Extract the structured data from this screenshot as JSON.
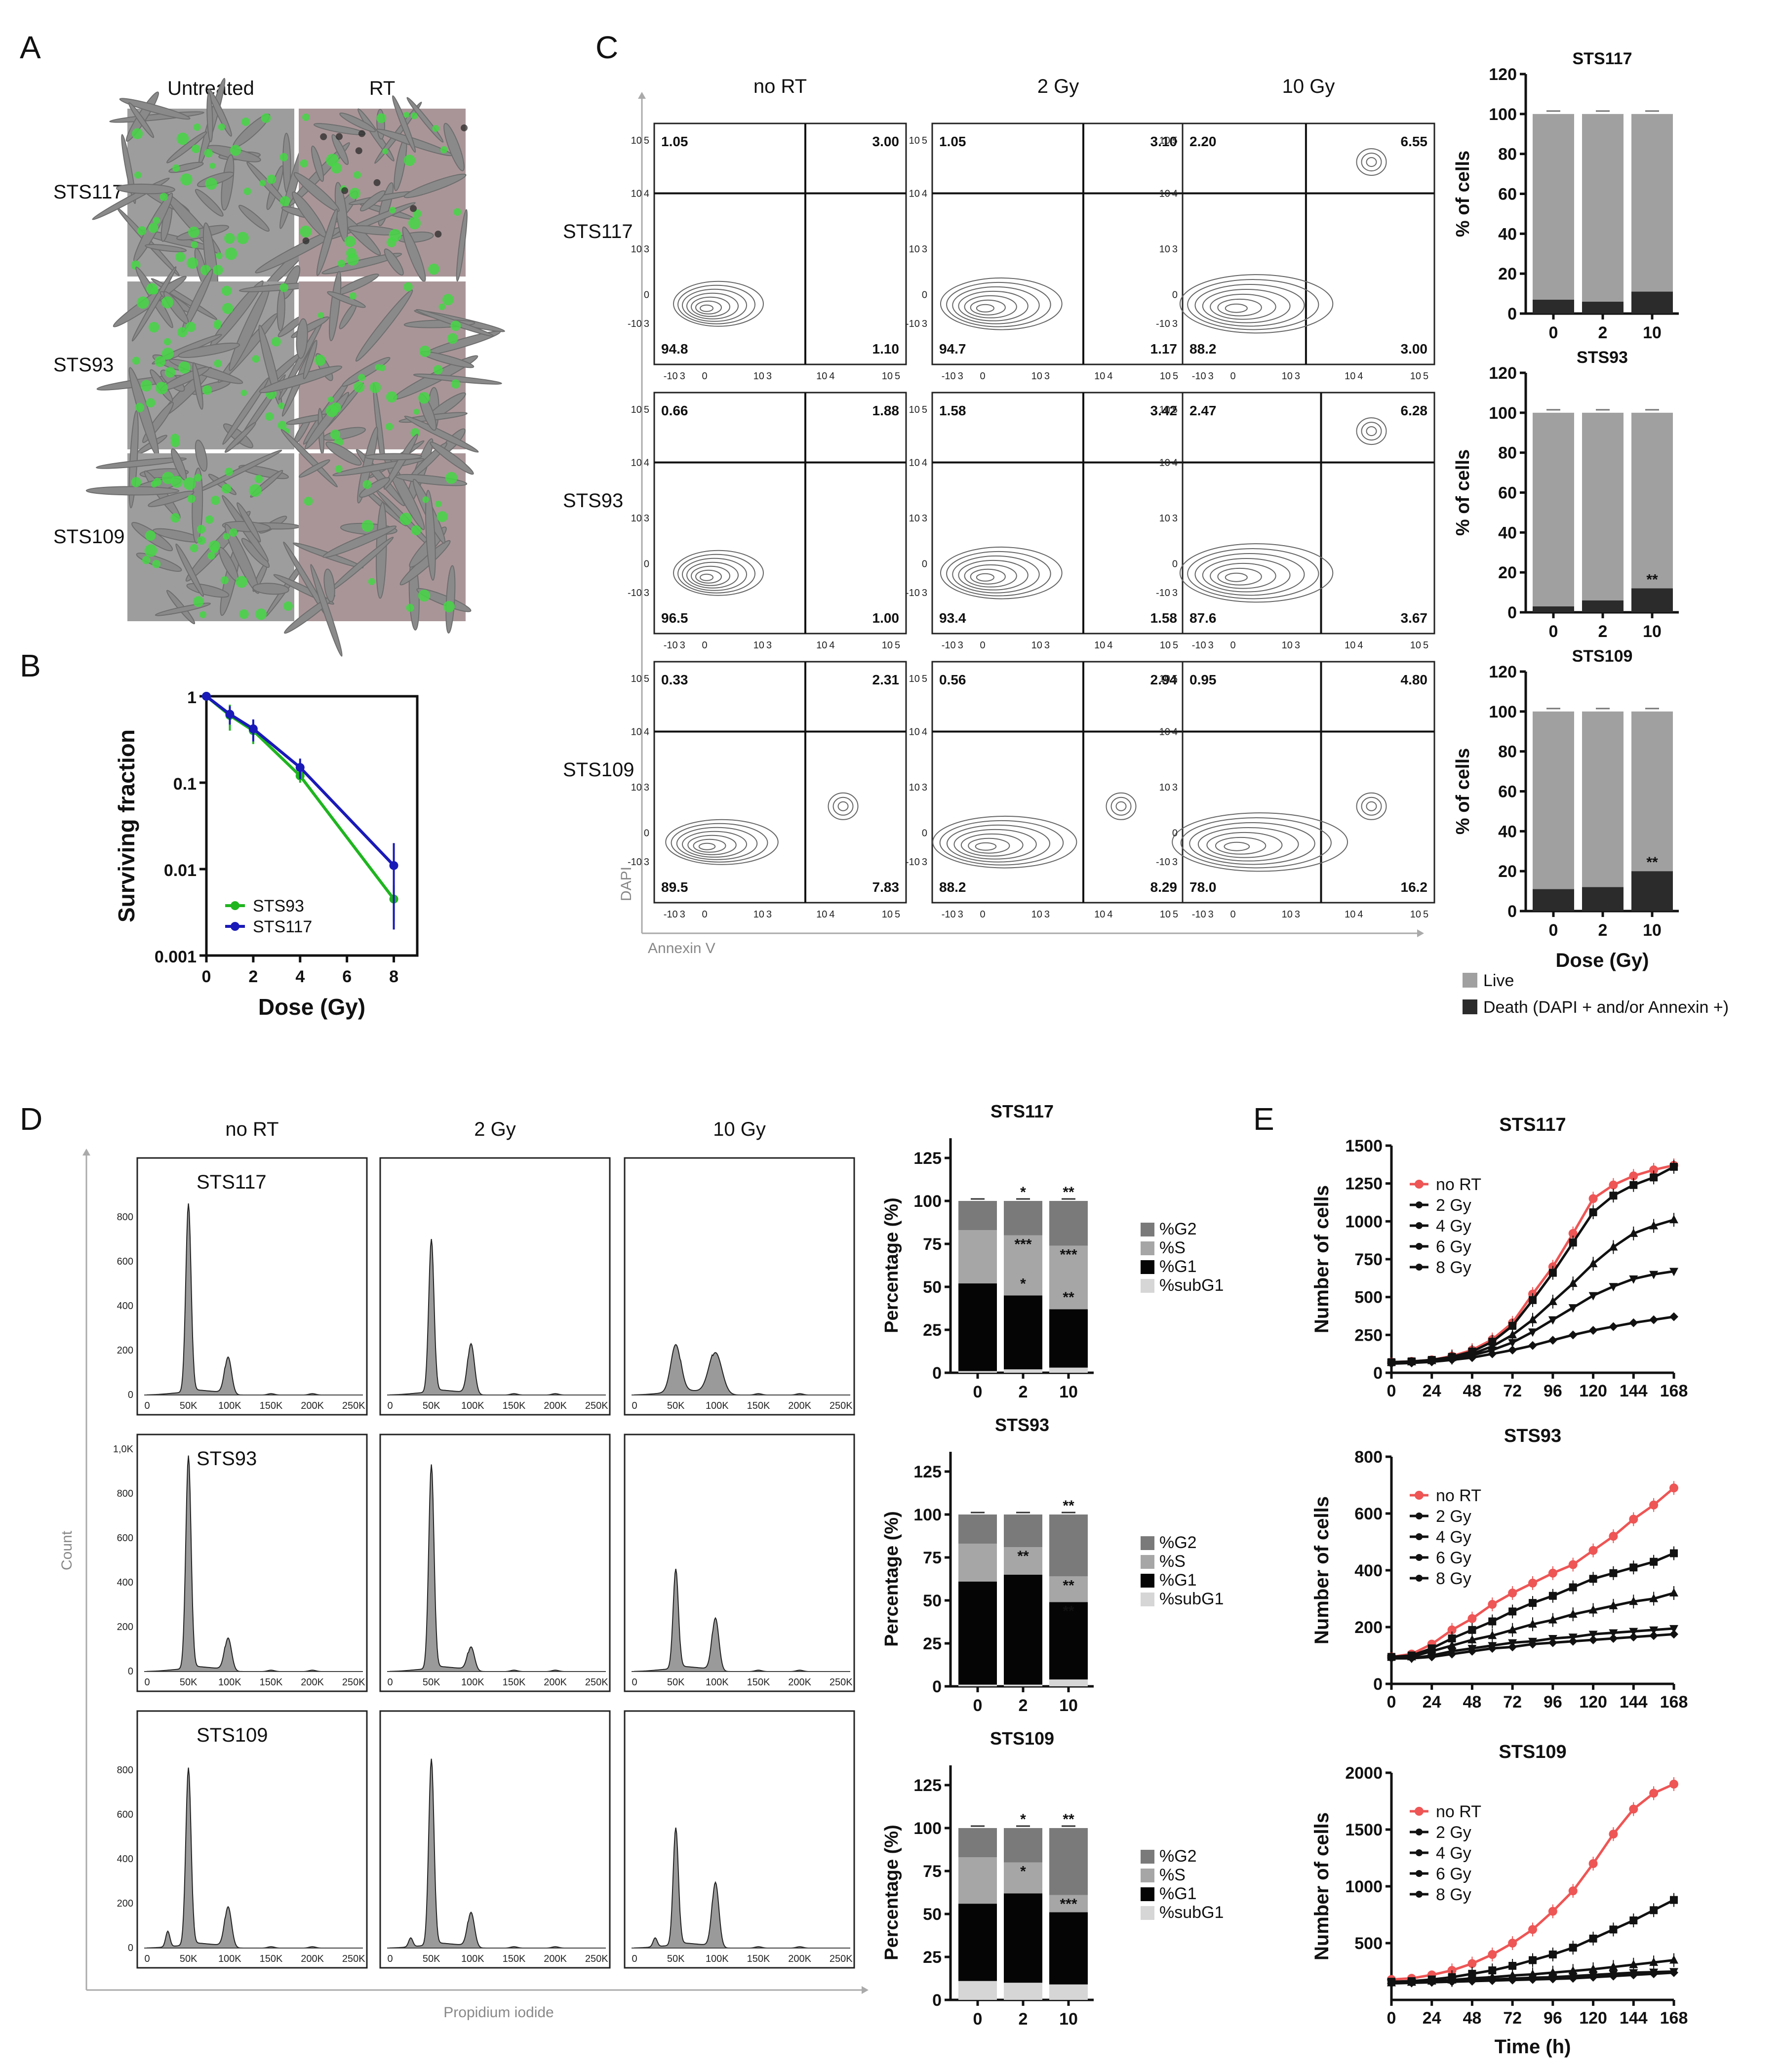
{
  "panels": {
    "A": "A",
    "B": "B",
    "C": "C",
    "D": "D",
    "E": "E"
  },
  "colors": {
    "green": "#1fb51f",
    "blue": "#1a1ab8",
    "red": "#ee5555",
    "live": "#a0a0a0",
    "death": "#2b2b2b",
    "g2": "#7a7a7a",
    "s": "#a6a6a6",
    "g1": "#050505",
    "subg1": "#d6d6d6",
    "cellbg": "#9a9a9a",
    "cellgreen": "#45d645"
  },
  "panel_a": {
    "col_headers": [
      "Untreated",
      "RT"
    ],
    "row_labels": [
      "STS117",
      "STS93",
      "STS109"
    ]
  },
  "chart_data": [
    {
      "id": "B",
      "type": "line",
      "title": "",
      "xlabel": "Dose (Gy)",
      "ylabel": "Surviving fraction",
      "yscale": "log",
      "xlim": [
        0,
        9
      ],
      "ylim": [
        0.001,
        1
      ],
      "xticks": [
        "0",
        "2",
        "4",
        "6",
        "8"
      ],
      "yticks": [
        "0.001",
        "0.01",
        "0.1",
        "1"
      ],
      "x": [
        0,
        1,
        2,
        4,
        8
      ],
      "series": [
        {
          "name": "STS93",
          "color": "#1fb51f",
          "values": [
            1,
            0.6,
            0.4,
            0.12,
            0.0045
          ],
          "err": [
            0,
            0.2,
            0.12,
            0.02,
            0.002
          ]
        },
        {
          "name": "STS117",
          "color": "#1a1ab8",
          "values": [
            1,
            0.62,
            0.42,
            0.15,
            0.011
          ],
          "err": [
            0,
            0.15,
            0.12,
            0.04,
            0.009
          ]
        }
      ]
    },
    {
      "id": "C_flow",
      "type": "scatter",
      "xlabel": "Annexin V",
      "ylabel": "DAPI",
      "col_headers": [
        "no RT",
        "2 Gy",
        "10 Gy"
      ],
      "row_labels": [
        "STS117",
        "STS93",
        "STS109"
      ],
      "y_tick_labels": [
        "10^5",
        "10^4",
        "10^3",
        "0",
        "-10^3"
      ],
      "x_tick_labels": [
        "-10^3",
        "0",
        "10^3",
        "10^4",
        "10^5"
      ],
      "quadrants": [
        [
          [
            "1.05",
            "3.00",
            "94.8",
            "1.10"
          ],
          [
            "1.05",
            "3.10",
            "94.7",
            "1.17"
          ],
          [
            "2.20",
            "6.55",
            "88.2",
            "3.00"
          ]
        ],
        [
          [
            "0.66",
            "1.88",
            "96.5",
            "1.00"
          ],
          [
            "1.58",
            "3.42",
            "93.4",
            "1.58"
          ],
          [
            "2.47",
            "6.28",
            "87.6",
            "3.67"
          ]
        ],
        [
          [
            "0.33",
            "2.31",
            "89.5",
            "7.83"
          ],
          [
            "0.56",
            "2.94",
            "88.2",
            "8.29"
          ],
          [
            "0.95",
            "4.80",
            "78.0",
            "16.2"
          ]
        ]
      ]
    },
    {
      "id": "C_bar",
      "type": "bar",
      "stacked": true,
      "xlabel": "Dose (Gy)",
      "ylabel": "% of cells",
      "categories": [
        "0",
        "2",
        "10"
      ],
      "ylim": [
        0,
        120
      ],
      "yticks": [
        "0",
        "20",
        "40",
        "60",
        "80",
        "100",
        "120"
      ],
      "legend": [
        "Live",
        "Death (DAPI + and/or Annexin +)"
      ],
      "charts": [
        {
          "title": "STS117",
          "live": [
            93,
            94,
            89
          ],
          "death": [
            7,
            6,
            11
          ],
          "sig": [
            "",
            "",
            ""
          ]
        },
        {
          "title": "STS93",
          "live": [
            97,
            94,
            88
          ],
          "death": [
            3,
            6,
            12
          ],
          "sig": [
            "",
            "",
            "**"
          ]
        },
        {
          "title": "STS109",
          "live": [
            89,
            88,
            80
          ],
          "death": [
            11,
            12,
            20
          ],
          "sig": [
            "",
            "",
            "**"
          ]
        }
      ]
    },
    {
      "id": "D_hist",
      "type": "area",
      "xlabel": "Propidium iodide",
      "ylabel": "Count",
      "col_headers": [
        "no RT",
        "2 Gy",
        "10 Gy"
      ],
      "row_labels": [
        "STS117",
        "STS93",
        "STS109"
      ],
      "x_tick_labels": [
        "0",
        "50K",
        "100K",
        "150K",
        "200K",
        "250K"
      ],
      "y_tick_labels": [
        [
          "0",
          "200",
          "400",
          "600",
          "800"
        ],
        [
          "0",
          "200",
          "400",
          "600",
          "800",
          "1,0K"
        ],
        [
          "0",
          "200",
          "400",
          "600",
          "800"
        ]
      ],
      "peaks": [
        [
          [
            850,
            170
          ],
          [
            690,
            230
          ],
          [
            215,
            190
          ]
        ],
        [
          [
            960,
            150
          ],
          [
            920,
            110
          ],
          [
            450,
            240
          ]
        ],
        [
          [
            800,
            185
          ],
          [
            840,
            160
          ],
          [
            530,
            295
          ]
        ]
      ],
      "subg1_peak": [
        [
          0,
          0,
          0
        ],
        [
          0,
          0,
          0
        ],
        [
          70,
          40,
          40
        ]
      ]
    },
    {
      "id": "D_bar",
      "type": "bar",
      "stacked": true,
      "xlabel": "",
      "ylabel": "Percentage (%)",
      "categories": [
        "0",
        "2",
        "10"
      ],
      "ylim": [
        0,
        125
      ],
      "yticks": [
        "0",
        "25",
        "50",
        "75",
        "100",
        "125"
      ],
      "legend": [
        "%G2",
        "%S",
        "%G1",
        "%subG1"
      ],
      "charts": [
        {
          "title": "STS117",
          "subg1": [
            1,
            2,
            3
          ],
          "g1": [
            51,
            43,
            34
          ],
          "s": [
            31,
            35,
            37
          ],
          "g2": [
            17,
            20,
            26
          ],
          "sig_g2": [
            "",
            "*",
            "**"
          ],
          "sig_s": [
            "",
            "***",
            "***"
          ],
          "sig_g1": [
            "",
            "*",
            "**"
          ]
        },
        {
          "title": "STS93",
          "subg1": [
            1,
            1,
            4
          ],
          "g1": [
            60,
            64,
            45
          ],
          "s": [
            22,
            16,
            15
          ],
          "g2": [
            17,
            19,
            36
          ],
          "sig_g2": [
            "",
            "",
            "**"
          ],
          "sig_s": [
            "",
            "**",
            "**"
          ],
          "sig_g1": [
            "",
            "",
            "**"
          ]
        },
        {
          "title": "STS109",
          "subg1": [
            11,
            10,
            9
          ],
          "g1": [
            45,
            52,
            42
          ],
          "s": [
            27,
            18,
            10
          ],
          "g2": [
            17,
            20,
            39
          ],
          "sig_g2": [
            "",
            "*",
            "**"
          ],
          "sig_s": [
            "",
            "*",
            "***"
          ],
          "sig_g1": [
            "",
            "",
            ""
          ]
        }
      ]
    },
    {
      "id": "E",
      "type": "line",
      "xlabel": "Time (h)",
      "ylabel": "Number of cells",
      "x": [
        0,
        12,
        24,
        36,
        48,
        60,
        72,
        84,
        96,
        108,
        120,
        132,
        144,
        156,
        168
      ],
      "xticks": [
        "0",
        "24",
        "48",
        "72",
        "96",
        "120",
        "144",
        "168"
      ],
      "legend": [
        "no RT",
        "2 Gy",
        "4 Gy",
        "6 Gy",
        "8 Gy"
      ],
      "charts": [
        {
          "title": "STS117",
          "ylim": [
            0,
            1500
          ],
          "yticks": [
            "0",
            "250",
            "500",
            "750",
            "1000",
            "1250",
            "1500"
          ],
          "series": [
            [
              70,
              75,
              85,
              110,
              150,
              220,
              330,
              520,
              700,
              920,
              1150,
              1240,
              1300,
              1340,
              1370
            ],
            [
              70,
              75,
              85,
              105,
              140,
              205,
              310,
              480,
              660,
              860,
              1060,
              1170,
              1240,
              1290,
              1360
            ],
            [
              70,
              72,
              80,
              100,
              125,
              175,
              250,
              350,
              470,
              590,
              720,
              830,
              920,
              970,
              1010
            ],
            [
              65,
              70,
              78,
              95,
              115,
              150,
              200,
              270,
              350,
              430,
              510,
              570,
              620,
              650,
              670
            ],
            [
              60,
              65,
              72,
              85,
              100,
              125,
              150,
              180,
              215,
              250,
              280,
              305,
              330,
              350,
              370
            ]
          ]
        },
        {
          "title": "STS93",
          "ylim": [
            0,
            800
          ],
          "yticks": [
            "0",
            "200",
            "400",
            "600",
            "800"
          ],
          "series": [
            [
              95,
              105,
              140,
              190,
              230,
              280,
              320,
              355,
              390,
              420,
              470,
              520,
              580,
              630,
              690
            ],
            [
              95,
              100,
              125,
              160,
              190,
              220,
              255,
              285,
              310,
              340,
              370,
              390,
              410,
              430,
              460
            ],
            [
              95,
              95,
              115,
              135,
              155,
              170,
              190,
              210,
              225,
              245,
              260,
              275,
              290,
              300,
              320
            ],
            [
              90,
              90,
              100,
              115,
              125,
              135,
              145,
              150,
              160,
              165,
              175,
              180,
              185,
              190,
              195
            ],
            [
              90,
              90,
              95,
              105,
              115,
              125,
              130,
              140,
              145,
              150,
              155,
              160,
              165,
              170,
              175
            ]
          ]
        },
        {
          "title": "STS109",
          "ylim": [
            0,
            2000
          ],
          "yticks": [
            "500",
            "1000",
            "1500",
            "2000"
          ],
          "series": [
            [
              180,
              190,
              220,
              260,
              320,
              400,
              500,
              620,
              780,
              960,
              1200,
              1460,
              1680,
              1820,
              1900
            ],
            [
              160,
              165,
              180,
              200,
              230,
              260,
              300,
              350,
              400,
              460,
              540,
              620,
              700,
              790,
              880
            ],
            [
              150,
              155,
              165,
              175,
              190,
              200,
              215,
              225,
              240,
              255,
              270,
              290,
              310,
              330,
              350
            ],
            [
              150,
              152,
              158,
              165,
              172,
              180,
              188,
              195,
              200,
              210,
              220,
              230,
              240,
              245,
              250
            ],
            [
              145,
              150,
              155,
              160,
              165,
              170,
              175,
              180,
              185,
              190,
              200,
              210,
              220,
              230,
              240
            ]
          ]
        }
      ]
    }
  ]
}
